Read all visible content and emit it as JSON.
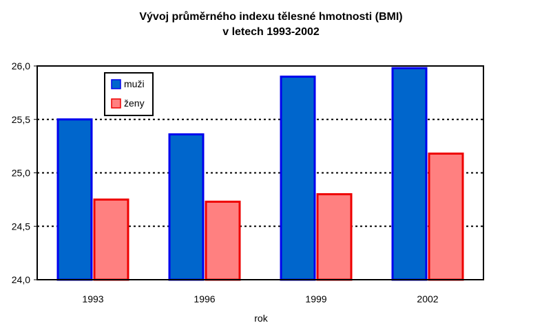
{
  "chart_data": {
    "type": "bar",
    "title_line1": "Vývoj průměrného indexu tělesné hmotnosti (BMI)",
    "title_line2": "v letech 1993-2002",
    "xlabel": "rok",
    "ylabel": "",
    "categories": [
      "1993",
      "1996",
      "1999",
      "2002"
    ],
    "series": [
      {
        "name": "muži",
        "values": [
          25.5,
          25.36,
          25.9,
          25.98
        ],
        "color": "#0066cc",
        "stroke": "#0000ee"
      },
      {
        "name": "ženy",
        "values": [
          24.75,
          24.73,
          24.8,
          25.18
        ],
        "color": "#ff8080",
        "stroke": "#ee0000"
      }
    ],
    "ylim": [
      24.0,
      26.0
    ],
    "yticks": [
      24.0,
      24.5,
      25.0,
      25.5,
      26.0
    ],
    "ytick_labels": [
      "24,0",
      "24,5",
      "25,0",
      "25,5",
      "26,0"
    ],
    "grid": "dotted horizontal",
    "legend_position": "top-left"
  }
}
